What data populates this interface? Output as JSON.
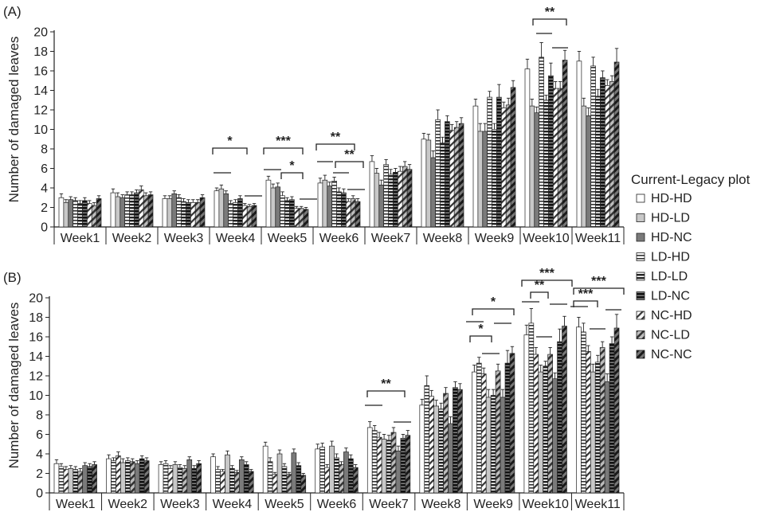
{
  "figure": {
    "legend_title": "Current-Legacy plot",
    "ylabel": "Number of damaged leaves"
  },
  "colors": {
    "HD-HD": "#ffffff",
    "HD-LD": "#c8c8c8",
    "HD-NC": "#7a7a7a",
    "axis": "#222222"
  },
  "legend": [
    {
      "name": "HD-HD",
      "pattern": "white"
    },
    {
      "name": "HD-LD",
      "pattern": "light-gray"
    },
    {
      "name": "HD-NC",
      "pattern": "dark-gray"
    },
    {
      "name": "LD-HD",
      "pattern": "horizontal-stripes-light"
    },
    {
      "name": "LD-LD",
      "pattern": "horizontal-stripes-medium"
    },
    {
      "name": "LD-NC",
      "pattern": "horizontal-stripes-dark"
    },
    {
      "name": "NC-HD",
      "pattern": "diagonal-stripes-light"
    },
    {
      "name": "NC-LD",
      "pattern": "diagonal-stripes-medium"
    },
    {
      "name": "NC-NC",
      "pattern": "diagonal-stripes-dark"
    }
  ],
  "chart_data": [
    {
      "panel_label": "(A)",
      "type": "bar",
      "ylabel": "Number of damaged leaves",
      "ylim": [
        0,
        20
      ],
      "yticks": [
        0,
        2,
        4,
        6,
        8,
        10,
        12,
        14,
        16,
        18,
        20
      ],
      "categories": [
        "Week1",
        "Week2",
        "Week3",
        "Week4",
        "Week5",
        "Week6",
        "Week7",
        "Week8",
        "Week9",
        "Week10",
        "Week11"
      ],
      "series_order": [
        "HD-HD",
        "HD-LD",
        "HD-NC",
        "LD-HD",
        "LD-LD",
        "LD-NC",
        "NC-HD",
        "NC-LD",
        "NC-NC"
      ],
      "series": [
        {
          "name": "HD-HD",
          "values": [
            3.0,
            3.5,
            2.9,
            3.7,
            4.8,
            4.5,
            6.7,
            9.0,
            12.4,
            16.2,
            17.0
          ],
          "errors": [
            0.4,
            0.4,
            0.3,
            0.3,
            0.4,
            0.5,
            0.6,
            0.6,
            0.7,
            1.0,
            1.0
          ]
        },
        {
          "name": "HD-LD",
          "values": [
            2.5,
            3.1,
            2.9,
            3.9,
            4.0,
            4.8,
            5.5,
            8.9,
            9.8,
            12.4,
            12.4
          ],
          "errors": [
            0.3,
            0.4,
            0.3,
            0.4,
            0.4,
            0.5,
            0.5,
            0.6,
            0.8,
            0.7,
            0.8
          ]
        },
        {
          "name": "HD-NC",
          "values": [
            2.8,
            3.0,
            3.4,
            3.4,
            4.1,
            4.2,
            4.3,
            7.1,
            9.8,
            11.7,
            11.4
          ],
          "errors": [
            0.3,
            0.3,
            0.3,
            0.3,
            0.4,
            0.4,
            0.5,
            0.7,
            0.8,
            0.6,
            0.8
          ]
        },
        {
          "name": "LD-HD",
          "values": [
            2.7,
            3.3,
            3.0,
            2.4,
            3.2,
            4.7,
            6.4,
            11.0,
            13.3,
            17.4,
            16.5
          ],
          "errors": [
            0.3,
            0.3,
            0.3,
            0.3,
            0.4,
            0.4,
            0.5,
            1.0,
            0.6,
            1.5,
            0.9
          ]
        },
        {
          "name": "LD-LD",
          "values": [
            2.4,
            3.3,
            2.6,
            2.5,
            2.7,
            3.6,
            5.4,
            8.6,
            10.0,
            13.0,
            13.4
          ],
          "errors": [
            0.3,
            0.3,
            0.3,
            0.3,
            0.3,
            0.4,
            0.5,
            0.6,
            0.6,
            0.5,
            0.7
          ]
        },
        {
          "name": "LD-NC",
          "values": [
            2.7,
            3.5,
            2.5,
            2.9,
            2.8,
            3.5,
            5.6,
            10.8,
            13.3,
            15.5,
            15.3
          ],
          "errors": [
            0.3,
            0.3,
            0.3,
            0.3,
            0.3,
            0.4,
            0.4,
            0.6,
            1.3,
            1.3,
            0.7
          ]
        },
        {
          "name": "NC-HD",
          "values": [
            2.4,
            3.8,
            2.5,
            2.2,
            1.9,
            2.6,
            5.7,
            9.9,
            12.2,
            14.2,
            14.5
          ],
          "errors": [
            0.3,
            0.4,
            0.3,
            0.2,
            0.2,
            0.3,
            0.5,
            0.6,
            0.6,
            0.7,
            0.6
          ]
        },
        {
          "name": "NC-LD",
          "values": [
            2.2,
            3.2,
            2.5,
            2.1,
            1.9,
            2.9,
            6.2,
            10.2,
            12.5,
            14.2,
            14.9
          ],
          "errors": [
            0.3,
            0.3,
            0.3,
            0.2,
            0.2,
            0.3,
            0.5,
            0.6,
            0.7,
            0.7,
            0.6
          ]
        },
        {
          "name": "NC-NC",
          "values": [
            2.9,
            3.3,
            3.0,
            2.2,
            1.8,
            2.6,
            5.9,
            10.6,
            14.3,
            17.1,
            16.9
          ],
          "errors": [
            0.3,
            0.3,
            0.3,
            0.2,
            0.2,
            0.3,
            0.5,
            0.6,
            0.7,
            1.0,
            1.4
          ]
        }
      ],
      "significance": [
        {
          "label": "*",
          "week": "Week4"
        },
        {
          "label": "***",
          "week": "Week5"
        },
        {
          "label": "*",
          "week": "Week5"
        },
        {
          "label": "**",
          "week": "Week6"
        },
        {
          "label": "**",
          "week": "Week6"
        },
        {
          "label": "**",
          "week": "Week10"
        }
      ]
    },
    {
      "panel_label": "(B)",
      "type": "bar",
      "ylabel": "Number of damaged leaves",
      "ylim": [
        0,
        20
      ],
      "yticks": [
        0,
        2,
        4,
        6,
        8,
        10,
        12,
        14,
        16,
        18,
        20
      ],
      "categories": [
        "Week1",
        "Week2",
        "Week3",
        "Week4",
        "Week5",
        "Week6",
        "Week7",
        "Week8",
        "Week9",
        "Week10",
        "Week11"
      ],
      "series_order": [
        "HD-HD",
        "LD-HD",
        "NC-HD",
        "HD-LD",
        "LD-LD",
        "NC-LD",
        "HD-NC",
        "LD-NC",
        "NC-NC"
      ],
      "series": [
        {
          "name": "HD-HD",
          "values": [
            3.0,
            3.5,
            2.9,
            3.7,
            4.8,
            4.5,
            6.7,
            9.0,
            12.4,
            16.2,
            17.0
          ],
          "errors": [
            0.4,
            0.4,
            0.3,
            0.3,
            0.4,
            0.5,
            0.6,
            0.6,
            0.7,
            1.0,
            1.0
          ]
        },
        {
          "name": "LD-HD",
          "values": [
            2.7,
            3.3,
            3.0,
            2.4,
            3.2,
            4.7,
            6.4,
            11.0,
            13.3,
            17.4,
            16.5
          ],
          "errors": [
            0.3,
            0.3,
            0.3,
            0.3,
            0.4,
            0.4,
            0.5,
            1.0,
            0.6,
            1.5,
            0.9
          ]
        },
        {
          "name": "NC-HD",
          "values": [
            2.4,
            3.8,
            2.5,
            2.2,
            1.9,
            2.6,
            5.7,
            9.9,
            12.2,
            14.2,
            14.5
          ],
          "errors": [
            0.3,
            0.4,
            0.3,
            0.2,
            0.2,
            0.3,
            0.5,
            0.6,
            0.6,
            0.7,
            0.6
          ]
        },
        {
          "name": "HD-LD",
          "values": [
            2.5,
            3.1,
            2.9,
            3.9,
            4.0,
            4.8,
            5.5,
            8.9,
            9.8,
            12.4,
            12.4
          ],
          "errors": [
            0.3,
            0.4,
            0.3,
            0.4,
            0.4,
            0.5,
            0.5,
            0.6,
            0.8,
            0.7,
            0.8
          ]
        },
        {
          "name": "LD-LD",
          "values": [
            2.4,
            3.3,
            2.6,
            2.5,
            2.7,
            3.6,
            5.4,
            8.6,
            10.0,
            13.0,
            13.4
          ],
          "errors": [
            0.3,
            0.3,
            0.3,
            0.3,
            0.3,
            0.4,
            0.5,
            0.6,
            0.6,
            0.5,
            0.7
          ]
        },
        {
          "name": "NC-LD",
          "values": [
            2.2,
            3.2,
            2.5,
            2.1,
            1.9,
            2.9,
            6.2,
            10.2,
            12.5,
            14.2,
            14.9
          ],
          "errors": [
            0.3,
            0.3,
            0.3,
            0.2,
            0.2,
            0.3,
            0.5,
            0.6,
            0.7,
            0.7,
            0.6
          ]
        },
        {
          "name": "HD-NC",
          "values": [
            2.8,
            3.0,
            3.4,
            3.4,
            4.1,
            4.2,
            4.3,
            7.1,
            9.8,
            11.7,
            11.4
          ],
          "errors": [
            0.3,
            0.3,
            0.3,
            0.3,
            0.4,
            0.4,
            0.5,
            0.7,
            0.8,
            0.6,
            0.8
          ]
        },
        {
          "name": "LD-NC",
          "values": [
            2.7,
            3.5,
            2.5,
            2.9,
            2.8,
            3.5,
            5.6,
            10.8,
            13.3,
            15.5,
            15.3
          ],
          "errors": [
            0.3,
            0.3,
            0.3,
            0.3,
            0.3,
            0.4,
            0.4,
            0.6,
            1.3,
            1.3,
            0.7
          ]
        },
        {
          "name": "NC-NC",
          "values": [
            2.9,
            3.3,
            3.0,
            2.2,
            1.8,
            2.6,
            5.9,
            10.6,
            14.3,
            17.1,
            16.9
          ],
          "errors": [
            0.3,
            0.3,
            0.3,
            0.2,
            0.2,
            0.3,
            0.5,
            0.6,
            0.7,
            1.0,
            1.4
          ]
        }
      ],
      "significance": [
        {
          "label": "**",
          "week": "Week7"
        },
        {
          "label": "*",
          "week": "Week9"
        },
        {
          "label": "*",
          "week": "Week9"
        },
        {
          "label": "***",
          "week": "Week10"
        },
        {
          "label": "**",
          "week": "Week10"
        },
        {
          "label": "***",
          "week": "Week11"
        },
        {
          "label": "***",
          "week": "Week11"
        }
      ]
    }
  ]
}
